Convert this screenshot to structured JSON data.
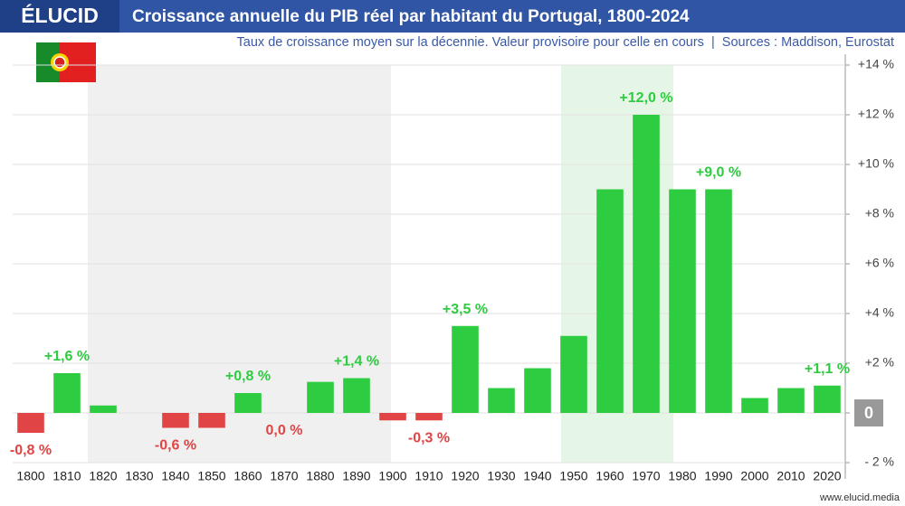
{
  "brand": "ÉLUCID",
  "footer": "www.elucid.media",
  "chart_data": {
    "type": "bar",
    "title": "Croissance annuelle du PIB réel par habitant du Portugal, 1800-2024",
    "subtitle": "Taux de croissance moyen sur la décennie. Valeur provisoire pour celle en cours  |  Sources : Maddison, Eurostat",
    "categories": [
      "1800",
      "1810",
      "1820",
      "1830",
      "1840",
      "1850",
      "1860",
      "1870",
      "1880",
      "1890",
      "1900",
      "1910",
      "1920",
      "1930",
      "1940",
      "1950",
      "1960",
      "1970",
      "1980",
      "1990",
      "2000",
      "2010",
      "2020"
    ],
    "values": [
      -0.8,
      1.6,
      0.3,
      0,
      -0.6,
      -0.6,
      0.8,
      0.0,
      1.25,
      1.4,
      -0.3,
      -0.3,
      3.5,
      1.0,
      1.8,
      3.1,
      9.0,
      12.0,
      9.0,
      9.0,
      0.6,
      1.0,
      1.1
    ],
    "value_labels": [
      "-0,8 %",
      "+1,6 %",
      null,
      null,
      "-0,6 %",
      null,
      "+0,8 %",
      "0,0 %",
      null,
      "+1,4 %",
      null,
      "-0,3 %",
      "+3,5 %",
      null,
      null,
      null,
      null,
      "+12,0 %",
      null,
      "+9,0 %",
      null,
      null,
      "+1,1 %"
    ],
    "positive_color": "#2ecc40",
    "negative_color": "#e04444",
    "ylim": [
      -2,
      14
    ],
    "yticks": [
      {
        "value": -2,
        "label": "- 2 %"
      },
      0,
      {
        "value": 2,
        "label": "+2 %"
      },
      {
        "value": 4,
        "label": "+4 %"
      },
      {
        "value": 6,
        "label": "+6 %"
      },
      {
        "value": 8,
        "label": "+8 %"
      },
      {
        "value": 10,
        "label": "+10 %"
      },
      {
        "value": 12,
        "label": "+12 %"
      },
      {
        "value": 14,
        "label": "+14 %"
      }
    ],
    "grid": true
  }
}
